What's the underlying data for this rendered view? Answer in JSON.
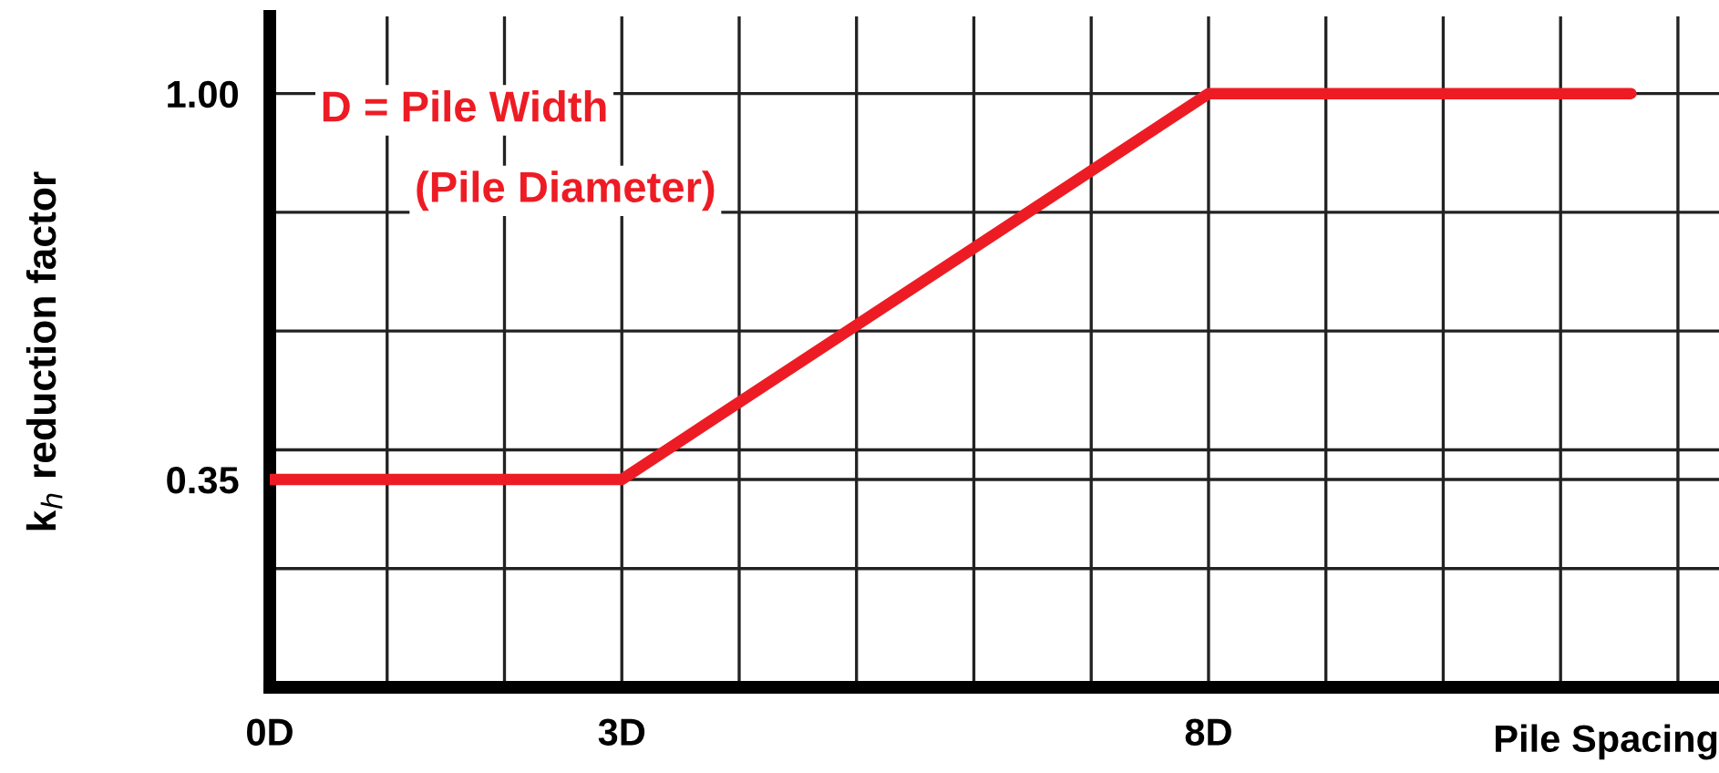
{
  "chart_data": {
    "type": "line",
    "xlabel": "Pile Spacing",
    "ylabel": "k$_{h}$ reduction factor",
    "annotations": [
      "D = Pile Width",
      "(Pile Diameter)"
    ],
    "series": [
      {
        "x": [
          0,
          3,
          8,
          11.6
        ],
        "values": [
          0.35,
          0.35,
          1.0,
          1.0
        ],
        "color": "#ed1c24"
      }
    ],
    "xlim": [
      0,
      12.35
    ],
    "ylim": [
      0,
      1.13
    ],
    "xticks": [
      {
        "value": 0,
        "label": "0D"
      },
      {
        "value": 1,
        "label": null
      },
      {
        "value": 2,
        "label": null
      },
      {
        "value": 3,
        "label": "3D"
      },
      {
        "value": 4,
        "label": null
      },
      {
        "value": 5,
        "label": null
      },
      {
        "value": 6,
        "label": null
      },
      {
        "value": 7,
        "label": null
      },
      {
        "value": 8,
        "label": "8D"
      },
      {
        "value": 9,
        "label": null
      },
      {
        "value": 10,
        "label": null
      },
      {
        "value": 11,
        "label": null
      },
      {
        "value": 12,
        "label": null
      }
    ],
    "yticks": [
      {
        "value": 0.2,
        "label": null
      },
      {
        "value": 0.35,
        "label": "0.35"
      },
      {
        "value": 0.4,
        "label": null
      },
      {
        "value": 0.6,
        "label": null
      },
      {
        "value": 0.8,
        "label": null
      },
      {
        "value": 1.0,
        "label": "1.00"
      }
    ],
    "grid": true,
    "line_style": "solid",
    "marker": "none",
    "legend": false
  }
}
